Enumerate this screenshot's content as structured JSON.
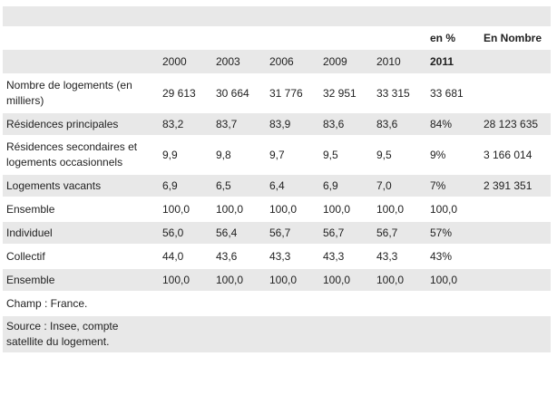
{
  "units_row": {
    "percent": "en %",
    "number": "En Nombre"
  },
  "years": [
    "2000",
    "2003",
    "2006",
    "2009",
    "2010",
    "2011"
  ],
  "rows": [
    {
      "label": "Nombre de logements (en milliers)",
      "values": [
        "29 613",
        "30 664",
        "31 776",
        "32 951",
        "33 315",
        "33 681"
      ],
      "number": ""
    },
    {
      "label": "Résidences principales",
      "values": [
        "83,2",
        "83,7",
        "83,9",
        "83,6",
        "83,6",
        "84%"
      ],
      "number": "28 123 635"
    },
    {
      "label": "Résidences secondaires et logements occasionnels",
      "values": [
        "9,9",
        "9,8",
        "9,7",
        "9,5",
        "9,5",
        "9%"
      ],
      "number": "3 166 014"
    },
    {
      "label": "Logements vacants",
      "values": [
        "6,9",
        "6,5",
        "6,4",
        "6,9",
        "7,0",
        "7%"
      ],
      "number": "2 391 351"
    },
    {
      "label": "Ensemble",
      "values": [
        "100,0",
        "100,0",
        "100,0",
        "100,0",
        "100,0",
        "100,0"
      ],
      "number": ""
    },
    {
      "label": "Individuel",
      "values": [
        "56,0",
        "56,4",
        "56,7",
        "56,7",
        "56,7",
        "57%"
      ],
      "number": ""
    },
    {
      "label": "Collectif",
      "values": [
        "44,0",
        "43,6",
        "43,3",
        "43,3",
        "43,3",
        "43%"
      ],
      "number": ""
    },
    {
      "label": "Ensemble",
      "values": [
        "100,0",
        "100,0",
        "100,0",
        "100,0",
        "100,0",
        "100,0"
      ],
      "number": ""
    }
  ],
  "notes": {
    "champ": "Champ : France.",
    "source": "Source : Insee, compte satellite du logement."
  }
}
